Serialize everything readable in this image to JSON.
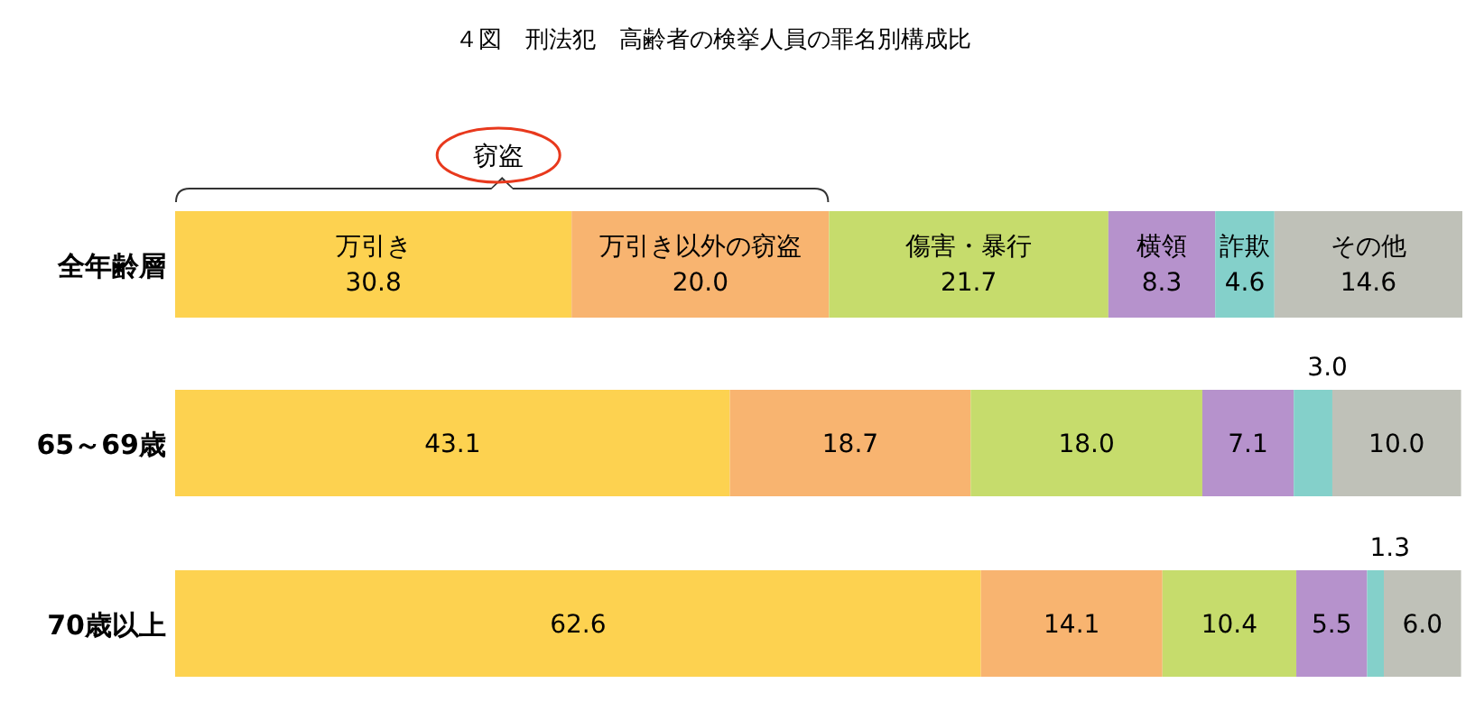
{
  "chart_data": {
    "type": "bar",
    "orientation": "horizontal",
    "stacked": true,
    "title": "４図　刑法犯　高齢者の検挙人員の罪名別構成比",
    "categories": [
      "全年齢層",
      "65～69歳",
      "70歳以上"
    ],
    "annotations": [
      "窃盗"
    ],
    "series": [
      {
        "name": "万引き",
        "color": "#fdd250",
        "values": [
          30.8,
          43.1,
          62.6
        ],
        "value_labels": [
          "30.8",
          "43.1",
          "62.6"
        ]
      },
      {
        "name": "万引き以外の窃盗",
        "color": "#f8b470",
        "values": [
          20.0,
          18.7,
          14.1
        ],
        "value_labels": [
          "20.0",
          "18.7",
          "14.1"
        ]
      },
      {
        "name": "傷害・暴行",
        "color": "#c6dc6c",
        "values": [
          21.7,
          18.0,
          10.4
        ],
        "value_labels": [
          "21.7",
          "18.0",
          "10.4"
        ]
      },
      {
        "name": "横領",
        "color": "#b692cc",
        "values": [
          8.3,
          7.1,
          5.5
        ],
        "value_labels": [
          "8.3",
          "7.1",
          "5.5"
        ]
      },
      {
        "name": "詐欺",
        "color": "#84d0ca",
        "values": [
          4.6,
          3.0,
          1.3
        ],
        "value_labels": [
          "4.6",
          "3.0",
          "1.3"
        ]
      },
      {
        "name": "その他",
        "color": "#bfc1b8",
        "values": [
          14.6,
          10.0,
          6.0
        ],
        "value_labels": [
          "14.6",
          "10.0",
          "6.0"
        ]
      }
    ]
  }
}
